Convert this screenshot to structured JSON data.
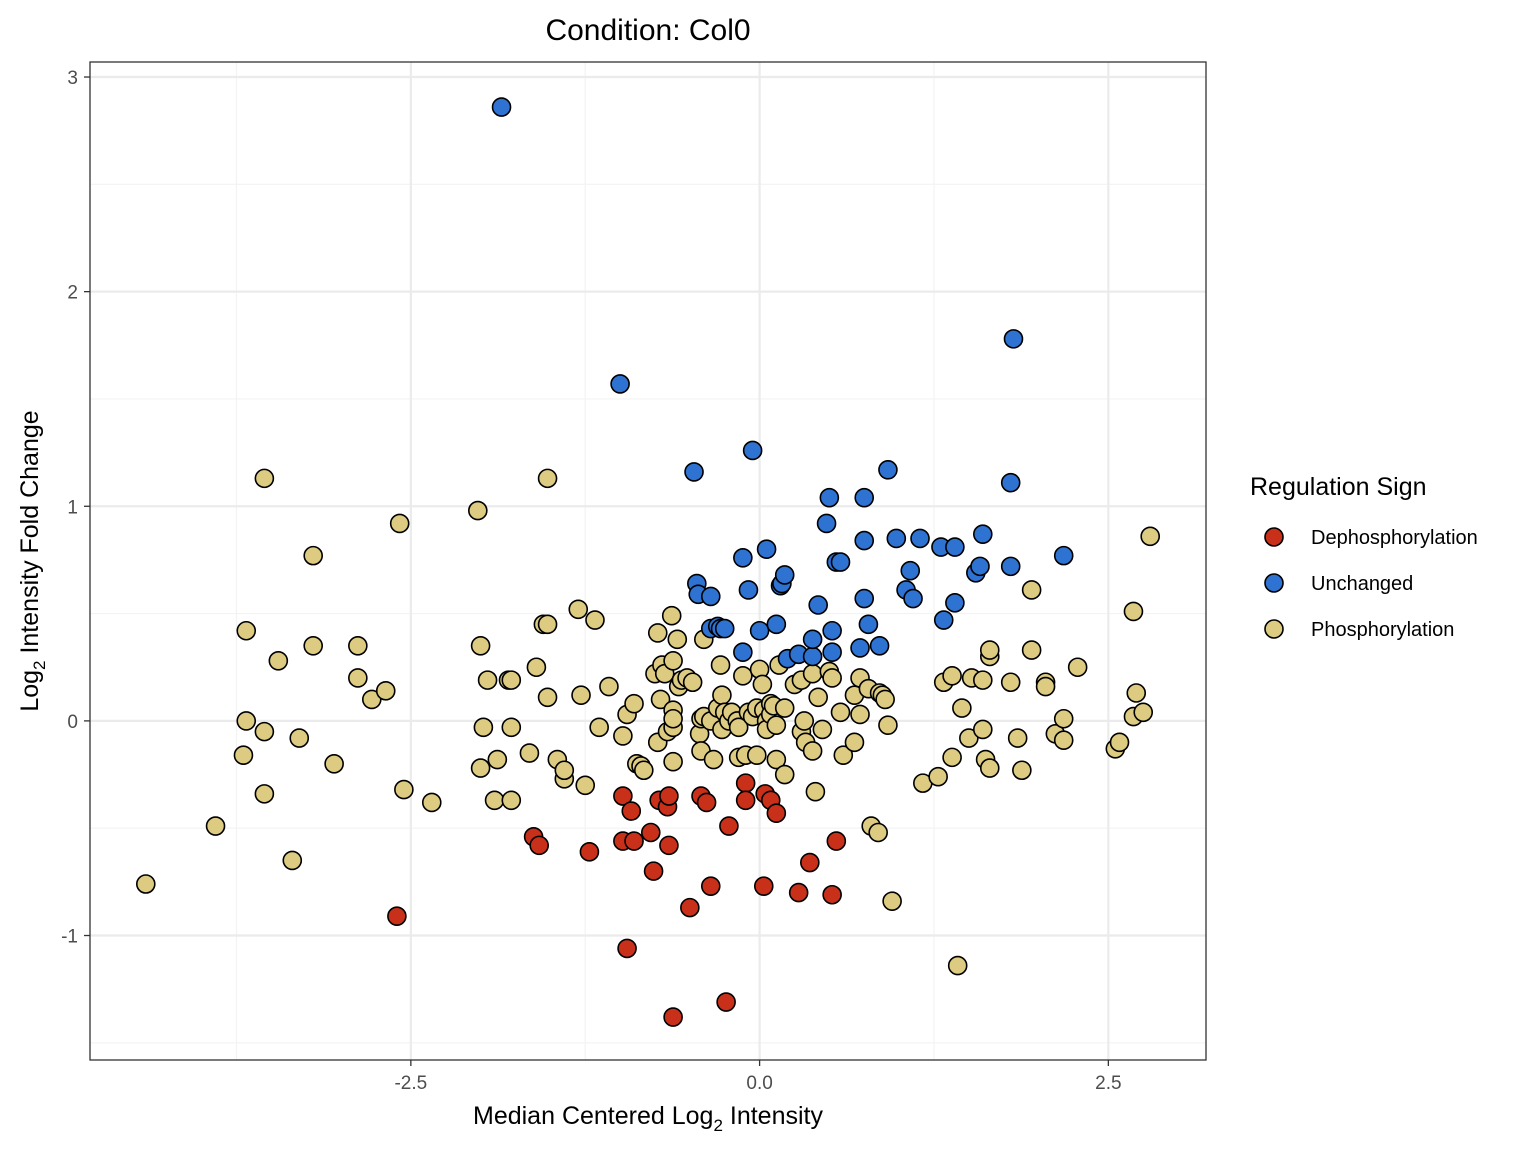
{
  "chart_data": {
    "type": "scatter",
    "title": "Condition: Col0",
    "xlabel_main": "Median Centered Log",
    "xlabel_sub": "2",
    "xlabel_tail": " Intensity",
    "ylabel_main": "Log",
    "ylabel_sub": "2",
    "ylabel_tail": " Intensity Fold Change",
    "xlim": [
      -4.8,
      3.2
    ],
    "ylim": [
      -1.58,
      3.07
    ],
    "x_ticks": [
      -2.5,
      0.0,
      2.5
    ],
    "x_tick_labels": [
      "-2.5",
      "0.0",
      "2.5"
    ],
    "y_ticks": [
      -1,
      0,
      1,
      2,
      3
    ],
    "y_tick_labels": [
      "-1",
      "0",
      "1",
      "2",
      "3"
    ],
    "grid": true,
    "legend": {
      "title": "Regulation Sign",
      "position": "right",
      "entries": [
        "Dephosphorylation",
        "Unchanged",
        "Phosphorylation"
      ]
    },
    "colors": {
      "Dephosphorylation": "#c9301a",
      "Unchanged": "#2e72d2",
      "Phosphorylation": "#dccb80"
    },
    "series": [
      {
        "name": "Phosphorylation",
        "points": [
          [
            -4.4,
            -0.76
          ],
          [
            -3.9,
            -0.49
          ],
          [
            -3.7,
            -0.16
          ],
          [
            -3.68,
            0.42
          ],
          [
            -3.68,
            0.0
          ],
          [
            -3.55,
            1.13
          ],
          [
            -3.55,
            -0.05
          ],
          [
            -3.55,
            -0.34
          ],
          [
            -3.45,
            0.28
          ],
          [
            -3.35,
            -0.65
          ],
          [
            -3.3,
            -0.08
          ],
          [
            -3.2,
            0.77
          ],
          [
            -3.2,
            0.35
          ],
          [
            -3.05,
            -0.2
          ],
          [
            -2.88,
            0.35
          ],
          [
            -2.88,
            0.2
          ],
          [
            -2.78,
            0.1
          ],
          [
            -2.68,
            0.14
          ],
          [
            -2.58,
            0.92
          ],
          [
            -2.55,
            -0.32
          ],
          [
            -2.35,
            -0.38
          ],
          [
            -2.02,
            0.98
          ],
          [
            -2.0,
            0.35
          ],
          [
            -2.0,
            -0.22
          ],
          [
            -1.98,
            -0.03
          ],
          [
            -1.95,
            0.19
          ],
          [
            -1.9,
            -0.37
          ],
          [
            -1.88,
            -0.18
          ],
          [
            -1.8,
            0.19
          ],
          [
            -1.78,
            0.19
          ],
          [
            -1.78,
            -0.37
          ],
          [
            -1.78,
            -0.03
          ],
          [
            -1.65,
            -0.15
          ],
          [
            -1.6,
            0.25
          ],
          [
            -1.55,
            0.45
          ],
          [
            -1.52,
            0.45
          ],
          [
            -1.52,
            1.13
          ],
          [
            -1.52,
            0.11
          ],
          [
            -1.45,
            -0.18
          ],
          [
            -1.4,
            -0.27
          ],
          [
            -1.4,
            -0.23
          ],
          [
            -1.3,
            0.52
          ],
          [
            -1.28,
            0.12
          ],
          [
            -1.25,
            -0.3
          ],
          [
            -1.18,
            0.47
          ],
          [
            -1.15,
            -0.03
          ],
          [
            -1.08,
            0.16
          ],
          [
            -0.98,
            -0.07
          ],
          [
            -0.95,
            0.03
          ],
          [
            -0.9,
            0.08
          ],
          [
            -0.88,
            -0.2
          ],
          [
            -0.85,
            -0.21
          ],
          [
            -0.83,
            -0.23
          ],
          [
            -0.75,
            0.22
          ],
          [
            -0.73,
            -0.1
          ],
          [
            -0.73,
            0.41
          ],
          [
            -0.71,
            0.1
          ],
          [
            -0.7,
            0.26
          ],
          [
            -0.68,
            0.22
          ],
          [
            -0.66,
            -0.05
          ],
          [
            -0.63,
            0.49
          ],
          [
            -0.62,
            0.28
          ],
          [
            -0.62,
            0.05
          ],
          [
            -0.62,
            -0.03
          ],
          [
            -0.62,
            0.01
          ],
          [
            -0.62,
            -0.19
          ],
          [
            -0.59,
            0.38
          ],
          [
            -0.58,
            0.16
          ],
          [
            -0.56,
            0.19
          ],
          [
            -0.52,
            0.2
          ],
          [
            -0.48,
            0.18
          ],
          [
            -0.43,
            -0.06
          ],
          [
            -0.42,
            0.01
          ],
          [
            -0.42,
            -0.14
          ],
          [
            -0.4,
            0.02
          ],
          [
            -0.4,
            0.38
          ],
          [
            -0.35,
            0.0
          ],
          [
            -0.33,
            -0.18
          ],
          [
            -0.3,
            0.06
          ],
          [
            -0.28,
            0.26
          ],
          [
            -0.27,
            0.12
          ],
          [
            -0.27,
            -0.04
          ],
          [
            -0.25,
            0.04
          ],
          [
            -0.22,
            0.0
          ],
          [
            -0.2,
            0.04
          ],
          [
            -0.16,
            0.0
          ],
          [
            -0.15,
            -0.03
          ],
          [
            -0.15,
            -0.17
          ],
          [
            -0.12,
            0.21
          ],
          [
            -0.1,
            -0.16
          ],
          [
            -0.08,
            0.04
          ],
          [
            -0.05,
            0.02
          ],
          [
            -0.02,
            0.06
          ],
          [
            -0.02,
            -0.16
          ],
          [
            0.0,
            0.24
          ],
          [
            0.02,
            0.17
          ],
          [
            0.03,
            0.05
          ],
          [
            0.05,
            0.0
          ],
          [
            0.05,
            -0.04
          ],
          [
            0.08,
            0.08
          ],
          [
            0.08,
            0.03
          ],
          [
            0.1,
            0.07
          ],
          [
            0.12,
            -0.02
          ],
          [
            0.12,
            -0.18
          ],
          [
            0.14,
            0.26
          ],
          [
            0.18,
            0.06
          ],
          [
            0.18,
            -0.25
          ],
          [
            0.25,
            0.17
          ],
          [
            0.3,
            0.19
          ],
          [
            0.3,
            -0.05
          ],
          [
            0.32,
            0.0
          ],
          [
            0.33,
            -0.1
          ],
          [
            0.38,
            0.22
          ],
          [
            0.38,
            -0.14
          ],
          [
            0.4,
            -0.33
          ],
          [
            0.42,
            0.11
          ],
          [
            0.45,
            -0.04
          ],
          [
            0.5,
            0.23
          ],
          [
            0.52,
            0.2
          ],
          [
            0.58,
            0.04
          ],
          [
            0.6,
            -0.16
          ],
          [
            0.68,
            0.12
          ],
          [
            0.68,
            -0.1
          ],
          [
            0.72,
            0.2
          ],
          [
            0.72,
            0.03
          ],
          [
            0.78,
            0.15
          ],
          [
            0.8,
            -0.49
          ],
          [
            0.85,
            -0.52
          ],
          [
            0.86,
            0.13
          ],
          [
            0.88,
            0.12
          ],
          [
            0.9,
            0.1
          ],
          [
            0.92,
            -0.02
          ],
          [
            0.95,
            -0.84
          ],
          [
            1.17,
            -0.29
          ],
          [
            1.28,
            -0.26
          ],
          [
            1.32,
            0.18
          ],
          [
            1.38,
            0.21
          ],
          [
            1.38,
            -0.17
          ],
          [
            1.42,
            -1.14
          ],
          [
            1.45,
            0.06
          ],
          [
            1.5,
            -0.08
          ],
          [
            1.52,
            0.2
          ],
          [
            1.6,
            0.19
          ],
          [
            1.6,
            -0.04
          ],
          [
            1.62,
            -0.18
          ],
          [
            1.65,
            0.3
          ],
          [
            1.65,
            0.33
          ],
          [
            1.65,
            -0.22
          ],
          [
            1.8,
            0.18
          ],
          [
            1.85,
            -0.08
          ],
          [
            1.88,
            -0.23
          ],
          [
            1.95,
            0.61
          ],
          [
            1.95,
            0.33
          ],
          [
            2.05,
            0.18
          ],
          [
            2.05,
            0.16
          ],
          [
            2.12,
            -0.06
          ],
          [
            2.18,
            0.01
          ],
          [
            2.18,
            -0.09
          ],
          [
            2.28,
            0.25
          ],
          [
            2.55,
            -0.13
          ],
          [
            2.58,
            -0.1
          ],
          [
            2.68,
            0.51
          ],
          [
            2.68,
            0.02
          ],
          [
            2.7,
            0.13
          ],
          [
            2.75,
            0.04
          ],
          [
            2.8,
            0.86
          ]
        ]
      },
      {
        "name": "Unchanged",
        "points": [
          [
            -1.85,
            2.86
          ],
          [
            -1.0,
            1.57
          ],
          [
            -0.47,
            1.16
          ],
          [
            -0.45,
            0.64
          ],
          [
            -0.44,
            0.59
          ],
          [
            -0.35,
            0.58
          ],
          [
            -0.35,
            0.43
          ],
          [
            -0.3,
            0.44
          ],
          [
            -0.28,
            0.43
          ],
          [
            -0.25,
            0.43
          ],
          [
            -0.12,
            0.32
          ],
          [
            -0.12,
            0.76
          ],
          [
            -0.08,
            0.61
          ],
          [
            -0.05,
            1.26
          ],
          [
            0.0,
            0.42
          ],
          [
            0.05,
            0.8
          ],
          [
            0.12,
            0.45
          ],
          [
            0.15,
            0.63
          ],
          [
            0.16,
            0.64
          ],
          [
            0.18,
            0.68
          ],
          [
            0.2,
            0.29
          ],
          [
            0.28,
            0.31
          ],
          [
            0.38,
            0.3
          ],
          [
            0.38,
            0.38
          ],
          [
            0.42,
            0.54
          ],
          [
            0.48,
            0.92
          ],
          [
            0.5,
            1.04
          ],
          [
            0.52,
            0.42
          ],
          [
            0.52,
            0.32
          ],
          [
            0.55,
            0.74
          ],
          [
            0.58,
            0.74
          ],
          [
            0.72,
            0.34
          ],
          [
            0.75,
            1.04
          ],
          [
            0.75,
            0.84
          ],
          [
            0.75,
            0.57
          ],
          [
            0.78,
            0.45
          ],
          [
            0.86,
            0.35
          ],
          [
            0.92,
            1.17
          ],
          [
            0.98,
            0.85
          ],
          [
            1.05,
            0.61
          ],
          [
            1.08,
            0.7
          ],
          [
            1.1,
            0.57
          ],
          [
            1.15,
            0.85
          ],
          [
            1.3,
            0.81
          ],
          [
            1.32,
            0.47
          ],
          [
            1.4,
            0.55
          ],
          [
            1.4,
            0.81
          ],
          [
            1.55,
            0.69
          ],
          [
            1.58,
            0.72
          ],
          [
            1.6,
            0.87
          ],
          [
            1.8,
            1.11
          ],
          [
            1.8,
            0.72
          ],
          [
            1.82,
            1.78
          ],
          [
            2.18,
            0.77
          ]
        ]
      },
      {
        "name": "Dephosphorylation",
        "points": [
          [
            -2.6,
            -0.91
          ],
          [
            -1.62,
            -0.54
          ],
          [
            -1.58,
            -0.58
          ],
          [
            -1.22,
            -0.61
          ],
          [
            -0.98,
            -0.35
          ],
          [
            -0.98,
            -0.56
          ],
          [
            -0.95,
            -1.06
          ],
          [
            -0.92,
            -0.42
          ],
          [
            -0.9,
            -0.56
          ],
          [
            -0.78,
            -0.52
          ],
          [
            -0.76,
            -0.7
          ],
          [
            -0.72,
            -0.37
          ],
          [
            -0.66,
            -0.4
          ],
          [
            -0.65,
            -0.35
          ],
          [
            -0.65,
            -0.58
          ],
          [
            -0.62,
            -1.38
          ],
          [
            -0.5,
            -0.87
          ],
          [
            -0.42,
            -0.35
          ],
          [
            -0.38,
            -0.38
          ],
          [
            -0.35,
            -0.77
          ],
          [
            -0.24,
            -1.31
          ],
          [
            -0.22,
            -0.49
          ],
          [
            -0.1,
            -0.29
          ],
          [
            -0.1,
            -0.37
          ],
          [
            0.03,
            -0.77
          ],
          [
            0.04,
            -0.34
          ],
          [
            0.08,
            -0.37
          ],
          [
            0.12,
            -0.43
          ],
          [
            0.28,
            -0.8
          ],
          [
            0.36,
            -0.66
          ],
          [
            0.52,
            -0.81
          ],
          [
            0.55,
            -0.56
          ]
        ]
      }
    ]
  }
}
